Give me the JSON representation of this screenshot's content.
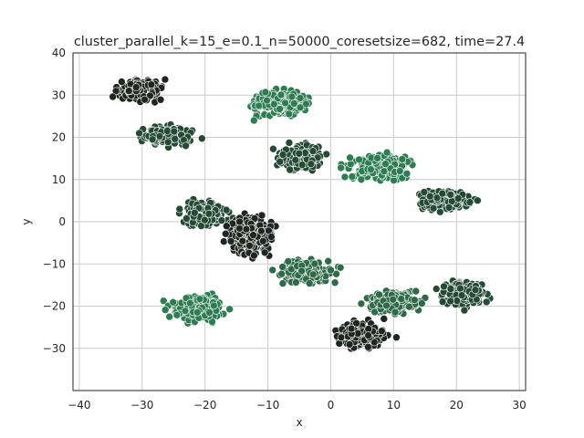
{
  "chart_data": {
    "type": "scatter",
    "title": "cluster_parallel_k=15_e=0.1_n=50000_coresetsize=682, time=27.4",
    "xlabel": "x",
    "ylabel": "y",
    "xlim": [
      -41,
      31
    ],
    "ylim": [
      -40,
      40
    ],
    "xticks": [
      -40,
      -30,
      -20,
      -10,
      0,
      10,
      20,
      30
    ],
    "yticks": [
      -30,
      -20,
      -10,
      0,
      10,
      20,
      30,
      40
    ],
    "grid": true,
    "legend": "none",
    "marker_edge_color": "#ffffff",
    "clusters": [
      {
        "center": [
          -30,
          31
        ],
        "spread": [
          5,
          3.5
        ],
        "color": "#1f2621"
      },
      {
        "center": [
          -26,
          20.5
        ],
        "spread": [
          6,
          3
        ],
        "color": "#244a35"
      },
      {
        "center": [
          -8,
          28
        ],
        "spread": [
          6.5,
          4
        ],
        "color": "#2e7d52"
      },
      {
        "center": [
          -5,
          15
        ],
        "spread": [
          5,
          4
        ],
        "color": "#244a35"
      },
      {
        "center": [
          8,
          13
        ],
        "spread": [
          7,
          4
        ],
        "color": "#2e7d52"
      },
      {
        "center": [
          18,
          5
        ],
        "spread": [
          6,
          3.5
        ],
        "color": "#244a35"
      },
      {
        "center": [
          -20,
          2
        ],
        "spread": [
          5,
          4
        ],
        "color": "#244a35"
      },
      {
        "center": [
          -13,
          -3
        ],
        "spread": [
          5,
          7
        ],
        "color": "#1f2621"
      },
      {
        "center": [
          -4,
          -12
        ],
        "spread": [
          6,
          4
        ],
        "color": "#2e6a48"
      },
      {
        "center": [
          -21,
          -20.5
        ],
        "spread": [
          6,
          4.5
        ],
        "color": "#2e7d52"
      },
      {
        "center": [
          10,
          -19
        ],
        "spread": [
          6,
          3.5
        ],
        "color": "#2e6a48"
      },
      {
        "center": [
          21,
          -17
        ],
        "spread": [
          5,
          4
        ],
        "color": "#244a35"
      },
      {
        "center": [
          5,
          -27
        ],
        "spread": [
          6,
          4
        ],
        "color": "#1f2621"
      }
    ]
  }
}
